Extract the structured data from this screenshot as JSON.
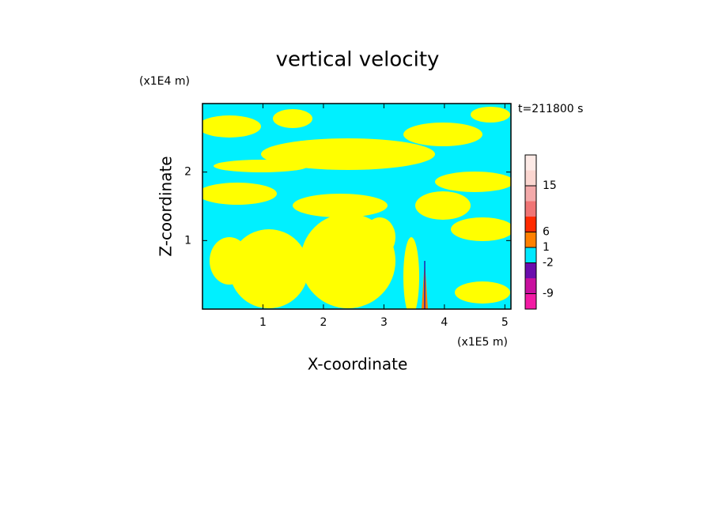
{
  "chart_data": {
    "type": "contour",
    "title": "vertical velocity",
    "x_label": "X-coordinate",
    "y_label": "Z-coordinate",
    "x_unit": "(x1E5 m)",
    "y_unit": "(x1E4 m)",
    "annotation": "t=211800 s",
    "xlim": [
      0,
      5.1
    ],
    "xticks": [
      1,
      2,
      3,
      4,
      5
    ],
    "ylim": [
      0,
      3
    ],
    "yticks": [
      1,
      2
    ],
    "colorbar": {
      "levels": [
        -12,
        -9,
        -6,
        -2,
        1,
        6,
        9,
        12,
        15,
        20,
        25
      ],
      "colors": [
        "#f21ba4",
        "#c8109e",
        "#6a0dad",
        "#00e8ff",
        "#ff8000",
        "#ff2a00",
        "#f07575",
        "#f4aaaa",
        "#fbd6d0",
        "#fdeae6"
      ],
      "ticks": [
        -9,
        -2,
        1,
        6,
        15
      ]
    }
  }
}
